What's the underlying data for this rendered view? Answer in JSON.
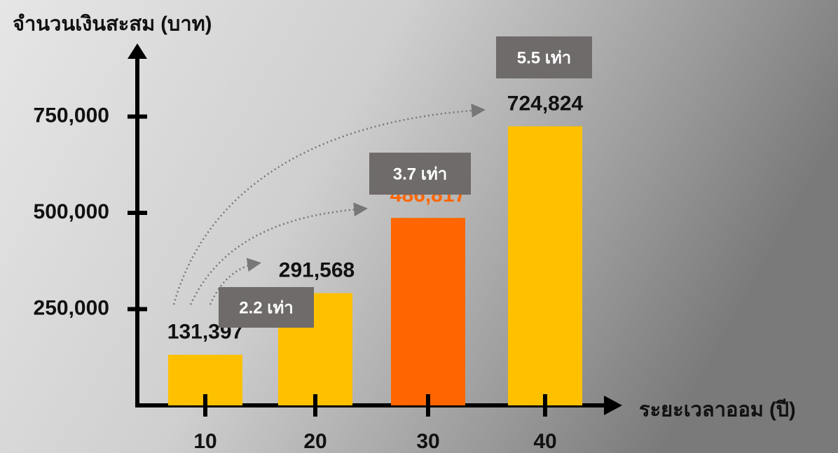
{
  "chart_data": {
    "type": "bar",
    "y_label": "จำนวนเงินสะสม (บาท)",
    "x_label": "ระยะเวลาออม (ปี)",
    "categories": [
      "10",
      "20",
      "30",
      "40"
    ],
    "values": [
      131397,
      291568,
      486817,
      724824
    ],
    "value_labels": [
      "131,397",
      "291,568",
      "486,817",
      "724,824"
    ],
    "colors": [
      "#ffc000",
      "#ffc000",
      "#ff6600",
      "#ffc000"
    ],
    "label_colors": [
      "#111111",
      "#111111",
      "#ff6600",
      "#111111"
    ],
    "annotations": [
      "2.2 เท่า",
      "3.7 เท่า",
      "5.5 เท่า"
    ],
    "ylim": [
      0,
      940000
    ],
    "yticks": [
      {
        "value": 250000,
        "label": "250,000"
      },
      {
        "value": 500000,
        "label": "500,000"
      },
      {
        "value": 750000,
        "label": "750,000"
      }
    ]
  }
}
